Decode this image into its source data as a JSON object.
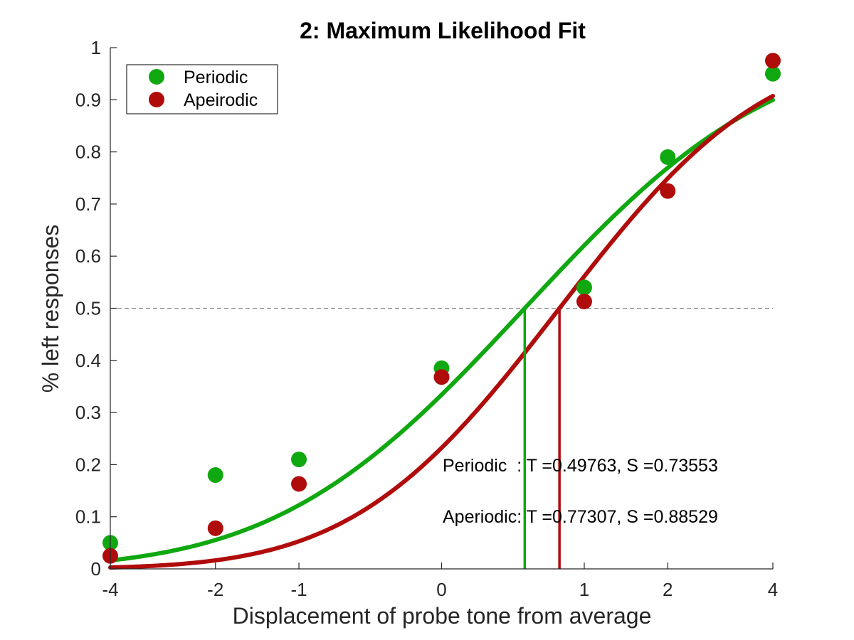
{
  "chart_data": {
    "type": "line",
    "title": "2: Maximum Likelihood Fit",
    "xlabel": "Displacement of probe tone from average",
    "ylabel": "% left responses",
    "xlim": [
      -4,
      4
    ],
    "ylim": [
      0,
      1
    ],
    "x_scale": "signed-log2 (tick positions follow sign(x)*log2(1+|x|))",
    "x_ticks": [
      -4,
      -2,
      -1,
      0,
      1,
      2,
      4
    ],
    "x_tick_labels": [
      "-4",
      "-2",
      "-1",
      "0",
      "1",
      "2",
      "4"
    ],
    "y_ticks": [
      0,
      0.1,
      0.2,
      0.3,
      0.4,
      0.5,
      0.6,
      0.7,
      0.8,
      0.9,
      1
    ],
    "y_tick_labels": [
      "0",
      "0.1",
      "0.2",
      "0.3",
      "0.4",
      "0.5",
      "0.6",
      "0.7",
      "0.8",
      "0.9",
      "1"
    ],
    "grid": false,
    "legend_position": "top-left",
    "reference_line": {
      "y": 0.5,
      "style": "dashed",
      "color": "#808080"
    },
    "series": [
      {
        "name": "Periodic",
        "color": "#10A810",
        "points": [
          {
            "x": -4,
            "y": 0.05
          },
          {
            "x": -2,
            "y": 0.18
          },
          {
            "x": -1,
            "y": 0.21
          },
          {
            "x": 0,
            "y": 0.385
          },
          {
            "x": 1,
            "y": 0.54
          },
          {
            "x": 2,
            "y": 0.79
          },
          {
            "x": 4,
            "y": 0.95
          }
        ],
        "fit": {
          "threshold": 0.49763,
          "slope": 0.73553
        },
        "threshold_marker_x": 0.49763
      },
      {
        "name": "Apeirodic",
        "color": "#B00C0C",
        "points": [
          {
            "x": -4,
            "y": 0.025
          },
          {
            "x": -2,
            "y": 0.078
          },
          {
            "x": -1,
            "y": 0.163
          },
          {
            "x": 0,
            "y": 0.368
          },
          {
            "x": 1,
            "y": 0.513
          },
          {
            "x": 2,
            "y": 0.725
          },
          {
            "x": 4,
            "y": 0.975
          }
        ],
        "fit": {
          "threshold": 0.77307,
          "slope": 0.88529
        },
        "threshold_marker_x": 0.77307
      }
    ],
    "annotations": [
      "Periodic  : T =0.49763, S =0.73553",
      "Aperiodic: T =0.77307, S =0.88529"
    ]
  }
}
